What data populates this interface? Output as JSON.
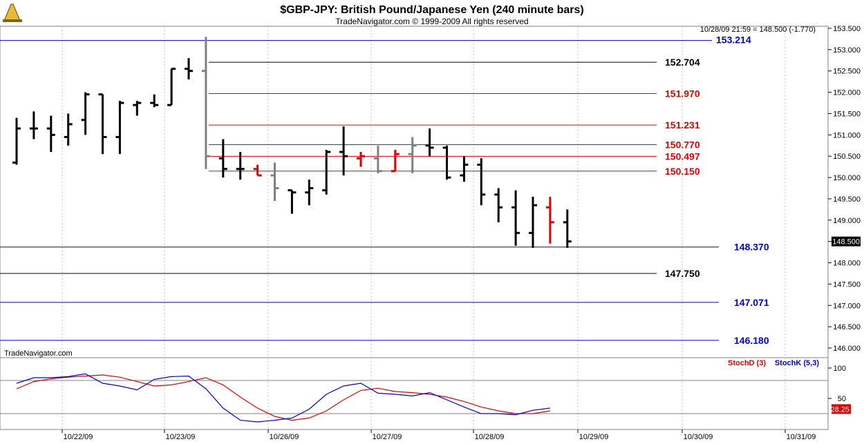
{
  "header": {
    "title": "$GBP-JPY:  British Pound/Japanese Yen  (240 minute bars)",
    "subtitle": "TradeNavigator.com © 1999-2009 All rights reserved",
    "readout": "10/28/09 21:59 = 148.500 (-1.770)",
    "watermark": "TradeNavigator.com"
  },
  "chart_data": [
    {
      "type": "ohlc",
      "ylim": [
        145.8,
        153.7
      ],
      "yticks": [
        "153.500",
        "153.000",
        "152.500",
        "152.000",
        "151.500",
        "151.000",
        "150.500",
        "150.000",
        "149.500",
        "149.000",
        "148.500",
        "148.000",
        "147.500",
        "147.000",
        "146.500",
        "146.000"
      ],
      "x_dates": [
        "10/22/09",
        "10/23/09",
        "10/26/09",
        "10/27/09",
        "10/28/09",
        "10/29/09",
        "10/30/09",
        "10/31/09"
      ],
      "last_price": "148.500",
      "levels": [
        {
          "label": "153.214",
          "value": 153.214,
          "color": "#0000cc"
        },
        {
          "label": "152.704",
          "value": 152.704,
          "color": "#000000"
        },
        {
          "label": "151.970",
          "value": 151.97,
          "color": "#dd0000"
        },
        {
          "label": "151.231",
          "value": 151.231,
          "color": "#dd0000"
        },
        {
          "label": "150.770",
          "value": 150.77,
          "color": "#dd0000"
        },
        {
          "label": "150.497",
          "value": 150.497,
          "color": "#dd0000"
        },
        {
          "label": "150.150",
          "value": 150.15,
          "color": "#dd0000"
        },
        {
          "label": "148.370",
          "value": 148.37,
          "color": "#0000cc"
        },
        {
          "label": "147.750",
          "value": 147.75,
          "color": "#000000"
        },
        {
          "label": "147.071",
          "value": 147.071,
          "color": "#0000cc"
        },
        {
          "label": "146.180",
          "value": 146.18,
          "color": "#0000cc"
        }
      ],
      "bars": [
        {
          "o": 150.35,
          "h": 151.4,
          "l": 150.3,
          "c": 151.15,
          "color": "#000000"
        },
        {
          "o": 151.15,
          "h": 151.55,
          "l": 150.9,
          "c": 151.15,
          "color": "#000000"
        },
        {
          "o": 151.15,
          "h": 151.45,
          "l": 150.6,
          "c": 151.0,
          "color": "#000000"
        },
        {
          "o": 150.95,
          "h": 151.5,
          "l": 150.75,
          "c": 151.25,
          "color": "#000000"
        },
        {
          "o": 151.35,
          "h": 152.0,
          "l": 151.0,
          "c": 151.95,
          "color": "#000000"
        },
        {
          "o": 151.95,
          "h": 151.95,
          "l": 150.55,
          "c": 150.95,
          "color": "#000000"
        },
        {
          "o": 150.95,
          "h": 151.8,
          "l": 150.55,
          "c": 151.75,
          "color": "#000000"
        },
        {
          "o": 151.7,
          "h": 151.8,
          "l": 151.45,
          "c": 151.75,
          "color": "#000000"
        },
        {
          "o": 151.75,
          "h": 151.95,
          "l": 151.65,
          "c": 151.7,
          "color": "#000000"
        },
        {
          "o": 151.7,
          "h": 152.55,
          "l": 151.7,
          "c": 152.55,
          "color": "#000000"
        },
        {
          "o": 152.55,
          "h": 152.8,
          "l": 152.3,
          "c": 152.5,
          "color": "#000000"
        },
        {
          "o": 152.5,
          "h": 153.3,
          "l": 150.2,
          "c": 150.5,
          "color": "#808080"
        },
        {
          "o": 150.45,
          "h": 150.9,
          "l": 150.0,
          "c": 150.2,
          "color": "#000000"
        },
        {
          "o": 150.2,
          "h": 150.6,
          "l": 149.95,
          "c": 150.2,
          "color": "#000000"
        },
        {
          "o": 150.2,
          "h": 150.3,
          "l": 150.05,
          "c": 150.05,
          "color": "#dd0000"
        },
        {
          "o": 150.05,
          "h": 150.35,
          "l": 149.45,
          "c": 149.75,
          "color": "#808080"
        },
        {
          "o": 149.7,
          "h": 149.7,
          "l": 149.15,
          "c": 149.65,
          "color": "#000000"
        },
        {
          "o": 149.65,
          "h": 149.95,
          "l": 149.35,
          "c": 149.75,
          "color": "#000000"
        },
        {
          "o": 149.7,
          "h": 150.65,
          "l": 149.6,
          "c": 150.6,
          "color": "#000000"
        },
        {
          "o": 150.6,
          "h": 151.2,
          "l": 150.05,
          "c": 150.5,
          "color": "#000000"
        },
        {
          "o": 150.45,
          "h": 150.6,
          "l": 150.25,
          "c": 150.5,
          "color": "#dd0000"
        },
        {
          "o": 150.45,
          "h": 150.75,
          "l": 150.1,
          "c": 150.15,
          "color": "#808080"
        },
        {
          "o": 150.15,
          "h": 150.65,
          "l": 150.15,
          "c": 150.55,
          "color": "#dd0000"
        },
        {
          "o": 150.55,
          "h": 150.95,
          "l": 150.1,
          "c": 150.75,
          "color": "#808080"
        },
        {
          "o": 150.75,
          "h": 151.15,
          "l": 150.5,
          "c": 150.7,
          "color": "#000000"
        },
        {
          "o": 150.7,
          "h": 150.75,
          "l": 149.95,
          "c": 150.0,
          "color": "#000000"
        },
        {
          "o": 150.05,
          "h": 150.5,
          "l": 149.9,
          "c": 150.3,
          "color": "#000000"
        },
        {
          "o": 150.3,
          "h": 150.45,
          "l": 149.35,
          "c": 149.6,
          "color": "#000000"
        },
        {
          "o": 149.6,
          "h": 149.75,
          "l": 148.95,
          "c": 149.3,
          "color": "#000000"
        },
        {
          "o": 149.3,
          "h": 149.7,
          "l": 148.4,
          "c": 148.7,
          "color": "#000000"
        },
        {
          "o": 148.7,
          "h": 149.55,
          "l": 148.35,
          "c": 149.35,
          "color": "#000000"
        },
        {
          "o": 149.3,
          "h": 149.55,
          "l": 148.45,
          "c": 148.95,
          "color": "#dd0000"
        },
        {
          "o": 148.95,
          "h": 149.25,
          "l": 148.35,
          "c": 148.5,
          "color": "#000000"
        }
      ]
    },
    {
      "type": "line",
      "ylim": [
        0,
        105
      ],
      "yticks": [
        "100",
        "50"
      ],
      "ref_lines": [
        80,
        20
      ],
      "series": [
        {
          "name": "StochD (3)",
          "color": "#dd0000",
          "last": "28.25",
          "values": [
            65,
            78,
            83,
            86,
            88,
            90,
            86,
            78,
            70,
            72,
            78,
            85,
            72,
            50,
            30,
            15,
            8,
            12,
            25,
            45,
            62,
            66,
            60,
            58,
            55,
            50,
            42,
            32,
            25,
            20,
            20,
            25
          ]
        },
        {
          "name": "StochK (5,3)",
          "color": "#0000cc",
          "last": "",
          "values": [
            75,
            85,
            85,
            87,
            92,
            75,
            70,
            63,
            82,
            87,
            88,
            65,
            30,
            8,
            5,
            8,
            12,
            28,
            55,
            70,
            75,
            57,
            55,
            52,
            58,
            45,
            32,
            20,
            20,
            18,
            26,
            30
          ]
        }
      ]
    }
  ]
}
